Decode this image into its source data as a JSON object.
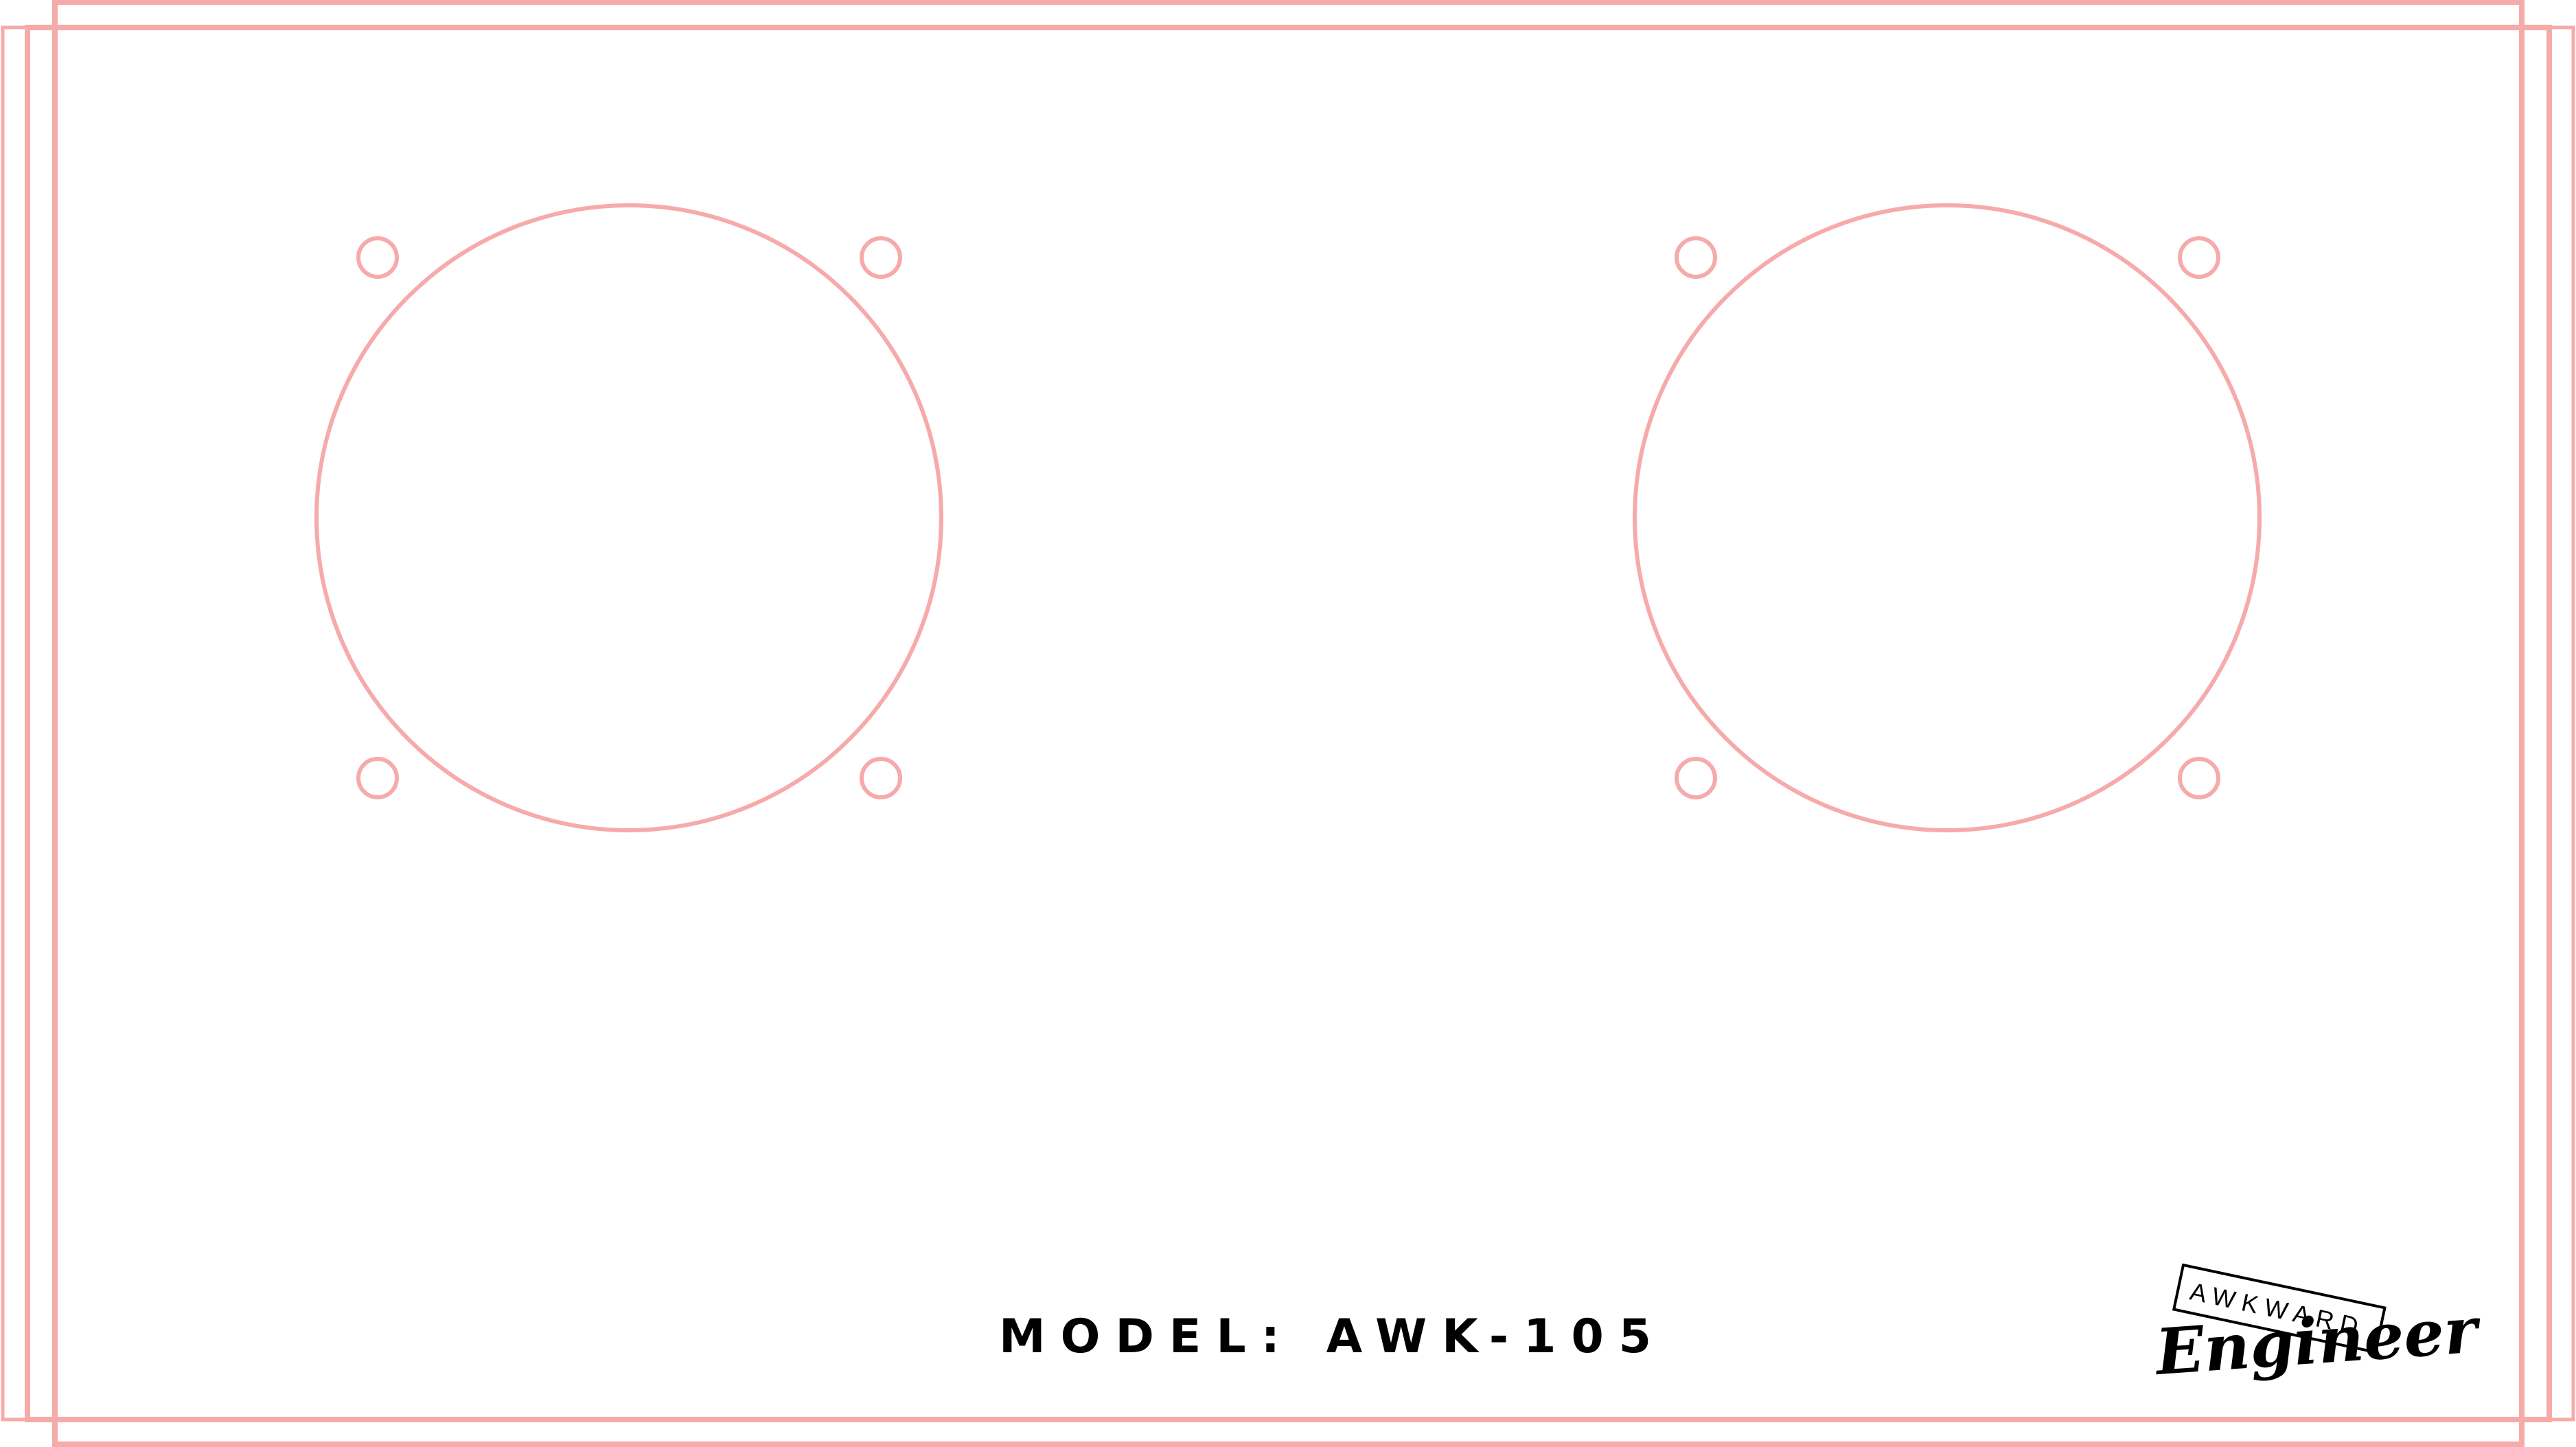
{
  "panel": {
    "model_label": "MODEL: AWK-105",
    "outline_color": "#f7aaaa",
    "text_color": "#000000"
  },
  "logo": {
    "top_word": "AWKWARD",
    "script_word": "Engineer"
  }
}
